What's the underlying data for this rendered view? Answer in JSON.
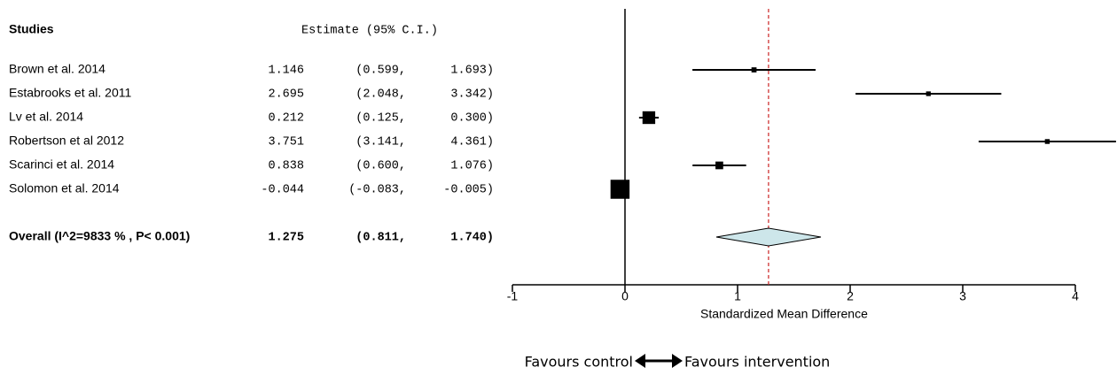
{
  "chart_data": {
    "type": "forest",
    "column_headers": [
      "Studies",
      "Estimate (95% C.I.)"
    ],
    "categories": [
      "Brown et al. 2014",
      "Estabrooks et al. 2011",
      "Lv et al. 2014",
      "Robertson et al 2012",
      "Scarinci et al. 2014",
      "Solomon et al. 2014"
    ],
    "values": [
      1.146,
      2.695,
      0.212,
      3.751,
      0.838,
      -0.044
    ],
    "lower": [
      0.599,
      2.048,
      0.125,
      3.141,
      0.6,
      -0.083
    ],
    "lower_labels": [
      "(0.599,",
      "(2.048,",
      "(0.125,",
      "(3.141,",
      "(0.600,",
      "(-0.083,"
    ],
    "upper": [
      1.693,
      3.342,
      0.3,
      4.361,
      1.076,
      -0.005
    ],
    "upper_labels": [
      "1.693)",
      "3.342)",
      "0.300)",
      "4.361)",
      "1.076)",
      "-0.005)"
    ],
    "summary": {
      "label": "Overall (I^2=9833 % , P< 0.001)",
      "value": 1.275,
      "lower": 0.811,
      "lower_label": "(0.811,",
      "upper": 1.74,
      "upper_label": "1.740)"
    },
    "summary_color": "#cde6ea",
    "reference_color": "#cc2222",
    "xlim": [
      -1,
      4.37
    ],
    "xticks": [
      -1,
      0,
      1,
      2,
      3,
      4
    ],
    "xlabel": "Standardized Mean Difference",
    "footer_left": "Favours control",
    "footer_right": "Favours intervention"
  }
}
